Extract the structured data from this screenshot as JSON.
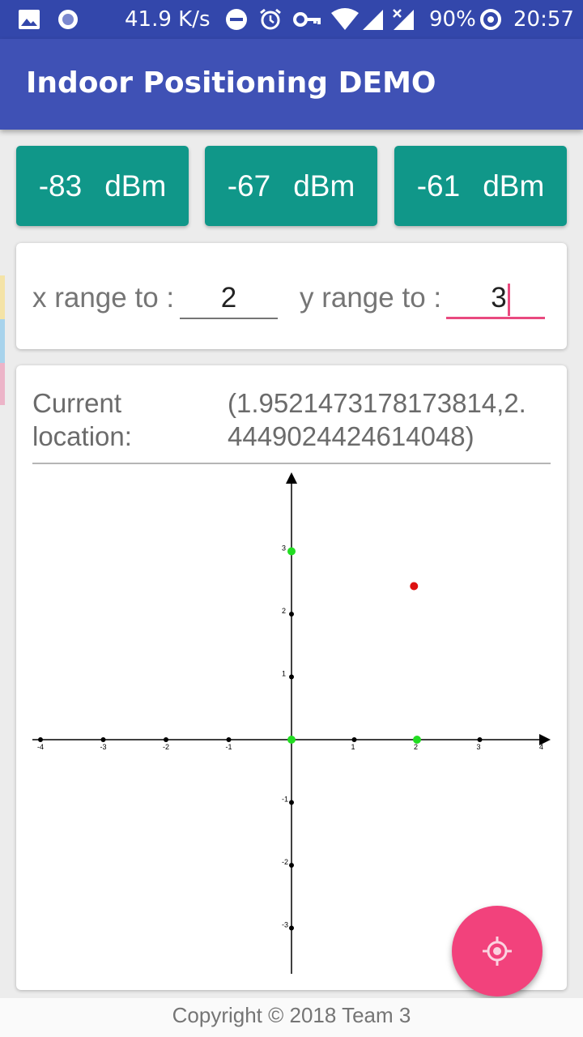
{
  "status_bar": {
    "speed": "41.9 K/s",
    "battery": "90%",
    "time": "20:57",
    "icons": [
      "image-icon",
      "circle-notification-icon",
      "do-not-disturb-icon",
      "alarm-icon",
      "vpn-key-icon",
      "wifi-icon",
      "signal-icon",
      "no-signal-icon",
      "battery-saver-icon"
    ]
  },
  "app": {
    "title": "Indoor Positioning DEMO"
  },
  "rssi": [
    {
      "value": "-83",
      "unit": "dBm"
    },
    {
      "value": "-67",
      "unit": "dBm"
    },
    {
      "value": "-61",
      "unit": "dBm"
    }
  ],
  "range": {
    "x_label": "x range to :",
    "x_value": "2",
    "y_label": "y range to :",
    "y_value": "3"
  },
  "location": {
    "label_line1": "Current",
    "label_line2": "location:",
    "value_line1": "(1.9521473178173814,2.",
    "value_line2": "4449024424614048)"
  },
  "colors": {
    "primary": "#3f51b5",
    "primary_dark": "#3347ab",
    "rssi_card": "#109789",
    "accent": "#f2427c",
    "anchor_point": "#22dd22",
    "position_point": "#dd1111"
  },
  "chart_data": {
    "type": "scatter",
    "x_ticks": [
      "-4",
      "-3",
      "-2",
      "-1",
      "1",
      "2",
      "3",
      "4"
    ],
    "y_ticks": [
      "3",
      "2",
      "1",
      "-1",
      "-2",
      "-3"
    ],
    "xlim": [
      -4,
      4
    ],
    "ylim": [
      -3,
      3
    ],
    "anchors": [
      [
        0,
        3
      ],
      [
        0,
        0
      ],
      [
        2,
        0
      ]
    ],
    "position": [
      1.9521473178173814,
      2.4449024424614048
    ]
  },
  "footer": {
    "text": "Copyright © 2018 Team 3"
  },
  "fab": {
    "icon": "gps-target-icon"
  }
}
